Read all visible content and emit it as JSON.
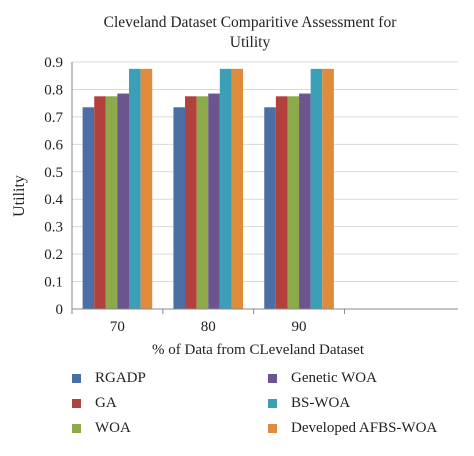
{
  "chart_data": {
    "type": "bar",
    "title": "Cleveland Dataset Comparitive Assessment for Utility",
    "title_lines": [
      "Cleveland Dataset Comparitive Assessment for",
      "Utility"
    ],
    "xlabel": "% of Data from CLeveland Dataset",
    "ylabel": "Utility",
    "categories": [
      "70",
      "80",
      "90"
    ],
    "ylim": [
      0,
      0.9
    ],
    "yticks": [
      "0",
      "0.1",
      "0.2",
      "0.3",
      "0.4",
      "0.5",
      "0.6",
      "0.7",
      "0.8",
      "0.9"
    ],
    "grid": true,
    "legend_position": "bottom",
    "series": [
      {
        "name": "RGADP",
        "color": "#4a6fa5",
        "values": [
          0.735,
          0.735,
          0.735
        ]
      },
      {
        "name": "GA",
        "color": "#b2403c",
        "values": [
          0.775,
          0.775,
          0.775
        ]
      },
      {
        "name": "WOA",
        "color": "#8daa4a",
        "values": [
          0.775,
          0.775,
          0.775
        ]
      },
      {
        "name": "Genetic WOA",
        "color": "#6c548f",
        "values": [
          0.785,
          0.785,
          0.785
        ]
      },
      {
        "name": "BS-WOA",
        "color": "#3b9fb8",
        "values": [
          0.875,
          0.875,
          0.875
        ]
      },
      {
        "name": "Developed AFBS-WOA",
        "color": "#e08a3c",
        "values": [
          0.875,
          0.875,
          0.875
        ]
      }
    ]
  }
}
